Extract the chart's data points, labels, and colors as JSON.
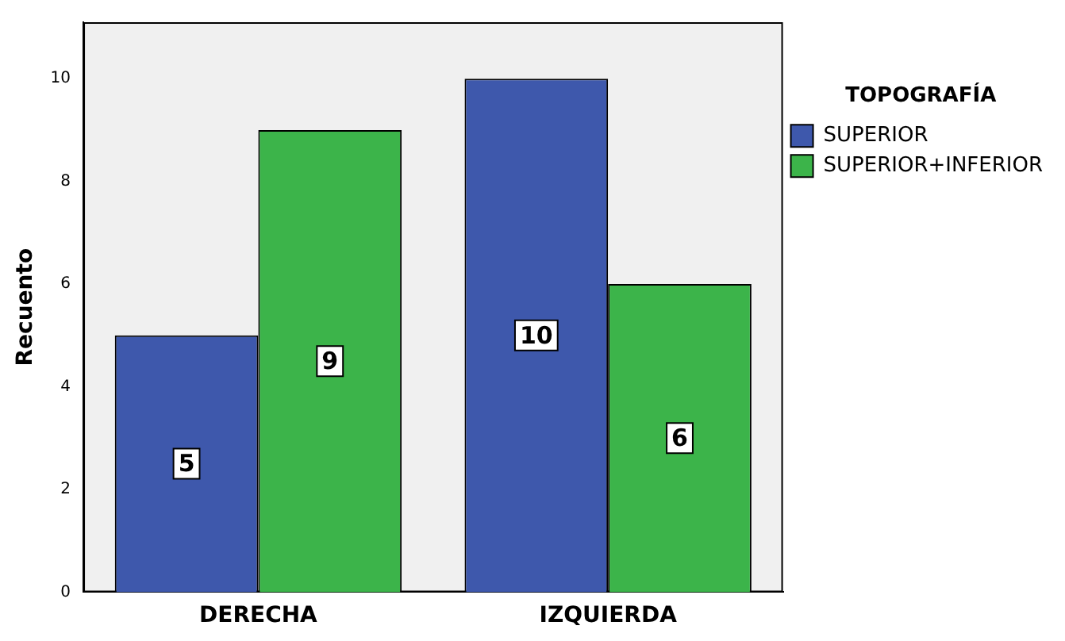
{
  "chart_data": {
    "type": "bar",
    "xlabel": null,
    "ylabel": "Recuento",
    "legend_title": "TOPOGRAFÍA",
    "categories": [
      "DERECHA",
      "IZQUIERDA"
    ],
    "series": [
      {
        "name": "SUPERIOR",
        "color": "#3e58ac",
        "values": [
          5,
          10
        ]
      },
      {
        "name": "SUPERIOR+INFERIOR",
        "color": "#3cb44a",
        "values": [
          9,
          6
        ]
      }
    ],
    "ylim": [
      0,
      11.1
    ],
    "yticks": [
      0,
      2,
      4,
      6,
      8,
      10
    ],
    "grid": false,
    "legend": "right",
    "data_labels": true
  }
}
